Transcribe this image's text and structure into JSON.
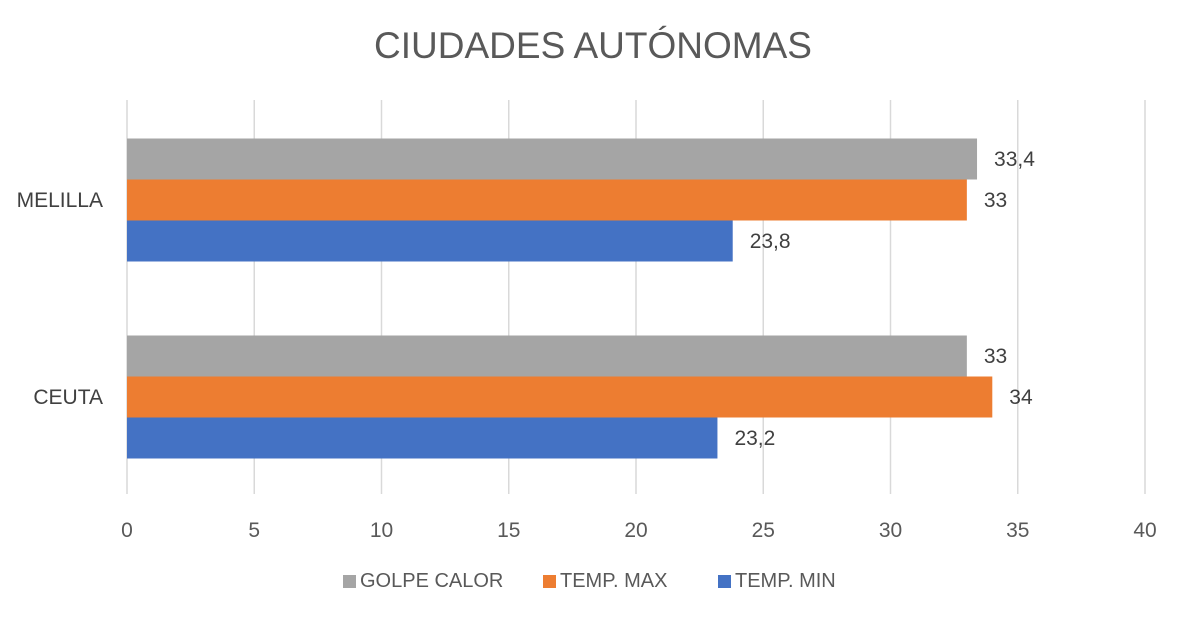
{
  "chart_data": {
    "type": "bar",
    "orientation": "horizontal",
    "title": "CIUDADES AUTÓNOMAS",
    "categories": [
      "MELILLA",
      "CEUTA"
    ],
    "series": [
      {
        "name": "GOLPE CALOR",
        "color": "#a5a5a5",
        "values": [
          33.4,
          33
        ],
        "labels": [
          "33,4",
          "33"
        ]
      },
      {
        "name": "TEMP. MAX",
        "color": "#ed7d31",
        "values": [
          33,
          34
        ],
        "labels": [
          "33",
          "34"
        ]
      },
      {
        "name": "TEMP. MIN",
        "color": "#4472c4",
        "values": [
          23.8,
          23.2
        ],
        "labels": [
          "23,8",
          "23,2"
        ]
      }
    ],
    "xlim": [
      0,
      40
    ],
    "xticks": [
      0,
      5,
      10,
      15,
      20,
      25,
      30,
      35,
      40
    ],
    "xtick_labels": [
      "0",
      "5",
      "10",
      "15",
      "20",
      "25",
      "30",
      "35",
      "40"
    ],
    "grid": true,
    "legend_position": "bottom"
  }
}
